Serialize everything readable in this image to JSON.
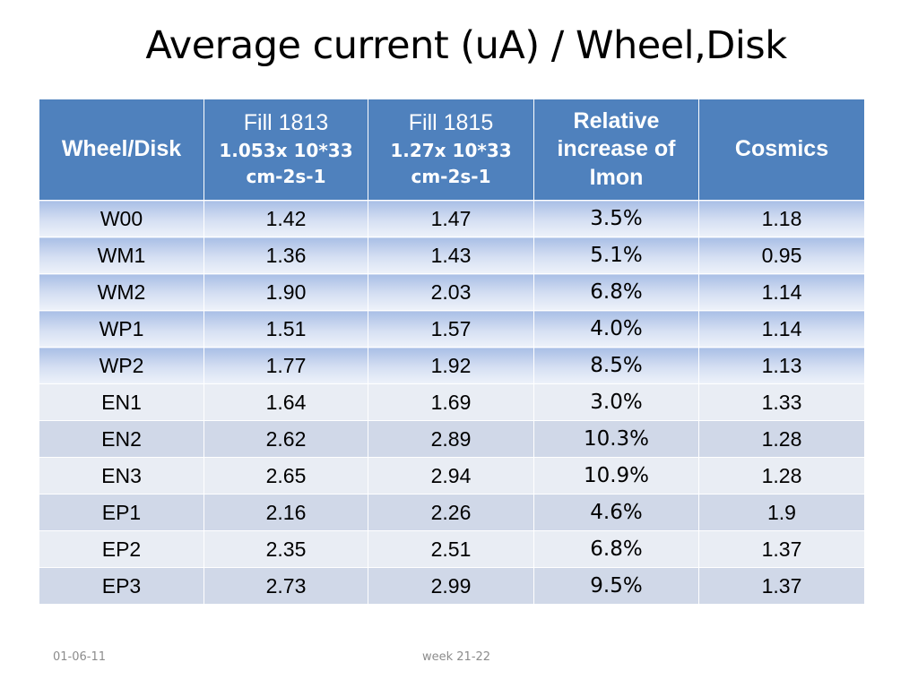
{
  "slide": {
    "title": "Average current (uA) / Wheel,Disk"
  },
  "table": {
    "headers": {
      "wheel": "Wheel/Disk",
      "fill1813_label": "Fill 1813",
      "fill1813_lumi_a": "1.053x 10*33",
      "fill1813_lumi_b": "cm-2s-1",
      "fill1815_label": "Fill 1815",
      "fill1815_lumi_a": "1.27x 10*33",
      "fill1815_lumi_b": "cm-2s-1",
      "rel_a": "Relative",
      "rel_b": "increase of",
      "rel_c": "Imon",
      "cosmics": "Cosmics"
    },
    "rows": [
      {
        "wheel": "W00",
        "fill1813": "1.42",
        "fill1815": "1.47",
        "rel": "3.5%",
        "cosmics": "1.18"
      },
      {
        "wheel": "WM1",
        "fill1813": "1.36",
        "fill1815": "1.43",
        "rel": "5.1%",
        "cosmics": "0.95"
      },
      {
        "wheel": "WM2",
        "fill1813": "1.90",
        "fill1815": "2.03",
        "rel": "6.8%",
        "cosmics": "1.14"
      },
      {
        "wheel": "WP1",
        "fill1813": "1.51",
        "fill1815": "1.57",
        "rel": "4.0%",
        "cosmics": "1.14"
      },
      {
        "wheel": "WP2",
        "fill1813": "1.77",
        "fill1815": "1.92",
        "rel": "8.5%",
        "cosmics": "1.13"
      },
      {
        "wheel": "EN1",
        "fill1813": "1.64",
        "fill1815": "1.69",
        "rel": "3.0%",
        "cosmics": "1.33"
      },
      {
        "wheel": "EN2",
        "fill1813": "2.62",
        "fill1815": "2.89",
        "rel": "10.3%",
        "cosmics": "1.28"
      },
      {
        "wheel": "EN3",
        "fill1813": "2.65",
        "fill1815": "2.94",
        "rel": "10.9%",
        "cosmics": "1.28"
      },
      {
        "wheel": "EP1",
        "fill1813": "2.16",
        "fill1815": "2.26",
        "rel": "4.6%",
        "cosmics": "1.9"
      },
      {
        "wheel": "EP2",
        "fill1813": "2.35",
        "fill1815": "2.51",
        "rel": "6.8%",
        "cosmics": "1.37"
      },
      {
        "wheel": "EP3",
        "fill1813": "2.73",
        "fill1815": "2.99",
        "rel": "9.5%",
        "cosmics": "1.37"
      }
    ]
  },
  "footer": {
    "date": "01-06-11",
    "week": "week 21-22"
  },
  "colors": {
    "header_bg": "#4f81bd",
    "band_a": "#d0d8e8",
    "band_b": "#e9edf4",
    "gradient_top": "#a9bfe6"
  }
}
